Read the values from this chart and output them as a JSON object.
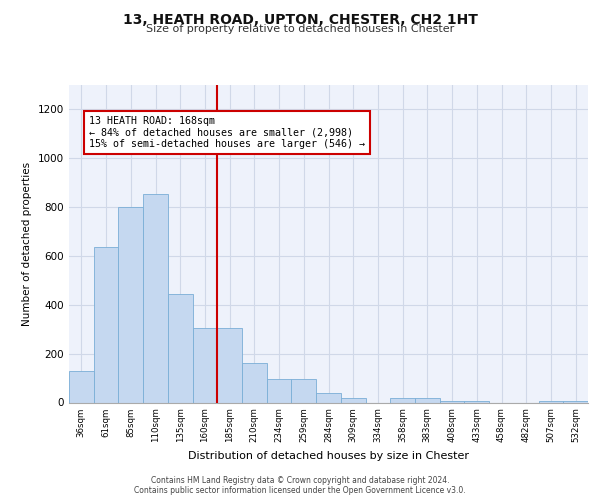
{
  "title1": "13, HEATH ROAD, UPTON, CHESTER, CH2 1HT",
  "title2": "Size of property relative to detached houses in Chester",
  "xlabel": "Distribution of detached houses by size in Chester",
  "ylabel": "Number of detached properties",
  "footer1": "Contains HM Land Registry data © Crown copyright and database right 2024.",
  "footer2": "Contains public sector information licensed under the Open Government Licence v3.0.",
  "categories": [
    "36sqm",
    "61sqm",
    "85sqm",
    "110sqm",
    "135sqm",
    "160sqm",
    "185sqm",
    "210sqm",
    "234sqm",
    "259sqm",
    "284sqm",
    "309sqm",
    "334sqm",
    "358sqm",
    "383sqm",
    "408sqm",
    "433sqm",
    "458sqm",
    "482sqm",
    "507sqm",
    "532sqm"
  ],
  "values": [
    130,
    635,
    800,
    855,
    445,
    305,
    305,
    160,
    95,
    95,
    40,
    20,
    0,
    20,
    20,
    5,
    5,
    0,
    0,
    5,
    5
  ],
  "bar_color": "#c5d8f0",
  "bar_edge_color": "#7aaed6",
  "ref_line_x": 5.5,
  "ref_line_color": "#cc0000",
  "annotation_text": "13 HEATH ROAD: 168sqm\n← 84% of detached houses are smaller (2,998)\n15% of semi-detached houses are larger (546) →",
  "annotation_box_color": "#cc0000",
  "ylim": [
    0,
    1300
  ],
  "yticks": [
    0,
    200,
    400,
    600,
    800,
    1000,
    1200
  ],
  "grid_color": "#d0d8e8",
  "bg_color": "#eef2fb"
}
